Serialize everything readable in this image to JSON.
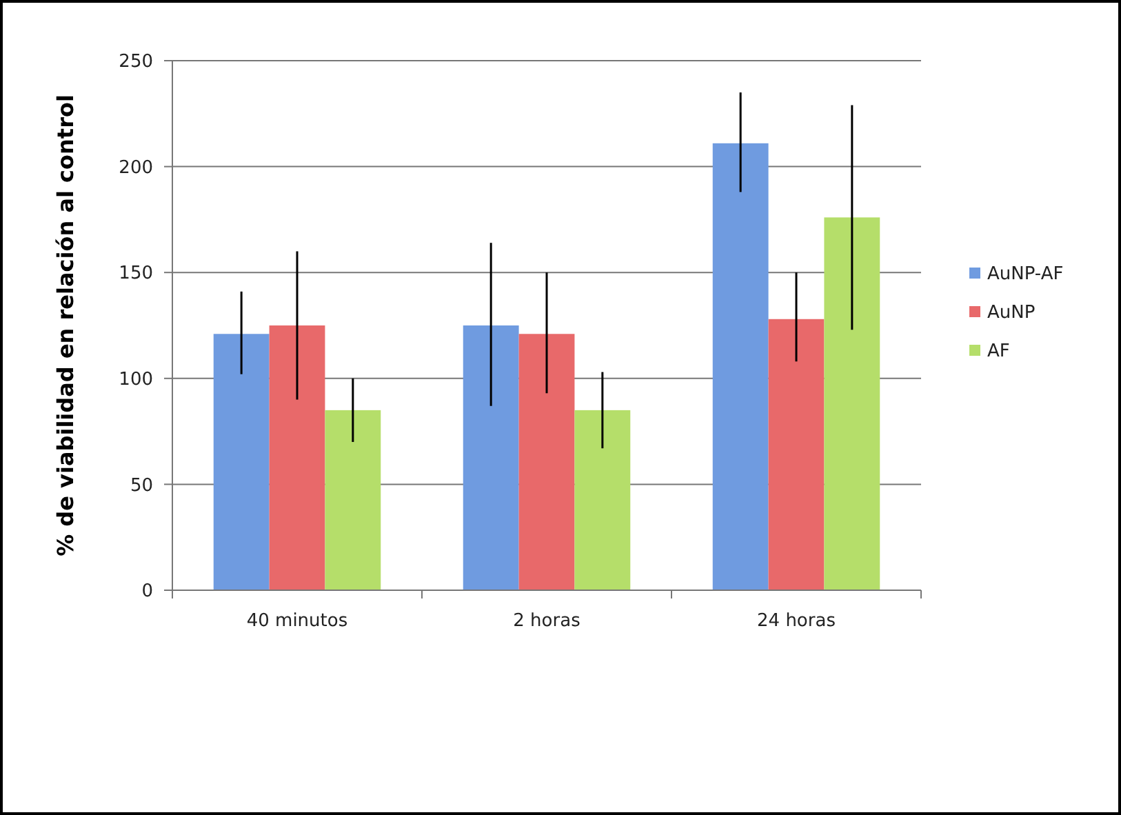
{
  "chart_data": {
    "type": "bar",
    "ylabel": "% de viabilidad en relación al control",
    "categories": [
      "40 minutos",
      "2 horas",
      "24 horas"
    ],
    "series": [
      {
        "name": "AuNP-AF",
        "color": "#6f9be0",
        "values": [
          121,
          125,
          211
        ],
        "errors": [
          [
            102,
            141
          ],
          [
            87,
            164
          ],
          [
            188,
            235
          ]
        ]
      },
      {
        "name": "AuNP",
        "color": "#e8696a",
        "values": [
          125,
          121,
          128
        ],
        "errors": [
          [
            90,
            160
          ],
          [
            93,
            150
          ],
          [
            108,
            150
          ]
        ]
      },
      {
        "name": "AF",
        "color": "#b5de6a",
        "values": [
          85,
          85,
          176
        ],
        "errors": [
          [
            70,
            100
          ],
          [
            67,
            103
          ],
          [
            123,
            229
          ]
        ]
      }
    ],
    "ylim": [
      0,
      250
    ],
    "yticks": [
      0,
      50,
      100,
      150,
      200,
      250
    ],
    "grid": "y",
    "legend": "right"
  }
}
